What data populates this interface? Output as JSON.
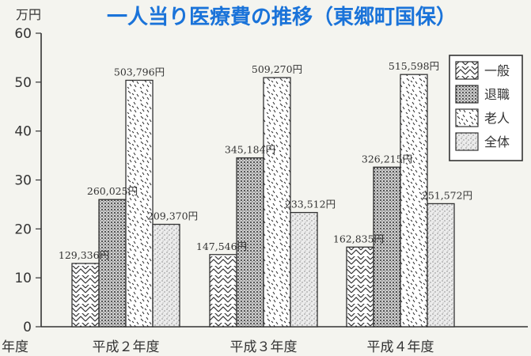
{
  "chart_data": {
    "type": "bar",
    "title": "一人当り医療費の推移（東郷町国保）",
    "ylabel": "万円",
    "xlabel": "年度",
    "ylim": [
      0,
      60
    ],
    "yticks": [
      "0",
      "10",
      "20",
      "30",
      "40",
      "50",
      "60"
    ],
    "categories": [
      "平成２年度",
      "平成３年度",
      "平成４年度"
    ],
    "legend_position": "top-right",
    "grid": false,
    "series": [
      {
        "name": "一般",
        "values": [
          12.9336,
          14.7546,
          16.2835
        ],
        "labels": [
          "129,336円",
          "147,546円",
          "162,835円"
        ],
        "pattern": "chevron"
      },
      {
        "name": "退職",
        "values": [
          26.0025,
          34.5184,
          32.6215
        ],
        "labels": [
          "260,025円",
          "345,184円",
          "326,215円"
        ],
        "pattern": "dots"
      },
      {
        "name": "老人",
        "values": [
          50.3796,
          50.927,
          51.5598
        ],
        "labels": [
          "503,796円",
          "509,270円",
          "515,598円"
        ],
        "pattern": "dash"
      },
      {
        "name": "全体",
        "values": [
          20.937,
          23.3512,
          25.1572
        ],
        "labels": [
          "209,370円",
          "233,512円",
          "251,572円"
        ],
        "pattern": "stipple"
      }
    ],
    "colors": {
      "title": "#1a73d9",
      "ink": "#333333"
    }
  }
}
